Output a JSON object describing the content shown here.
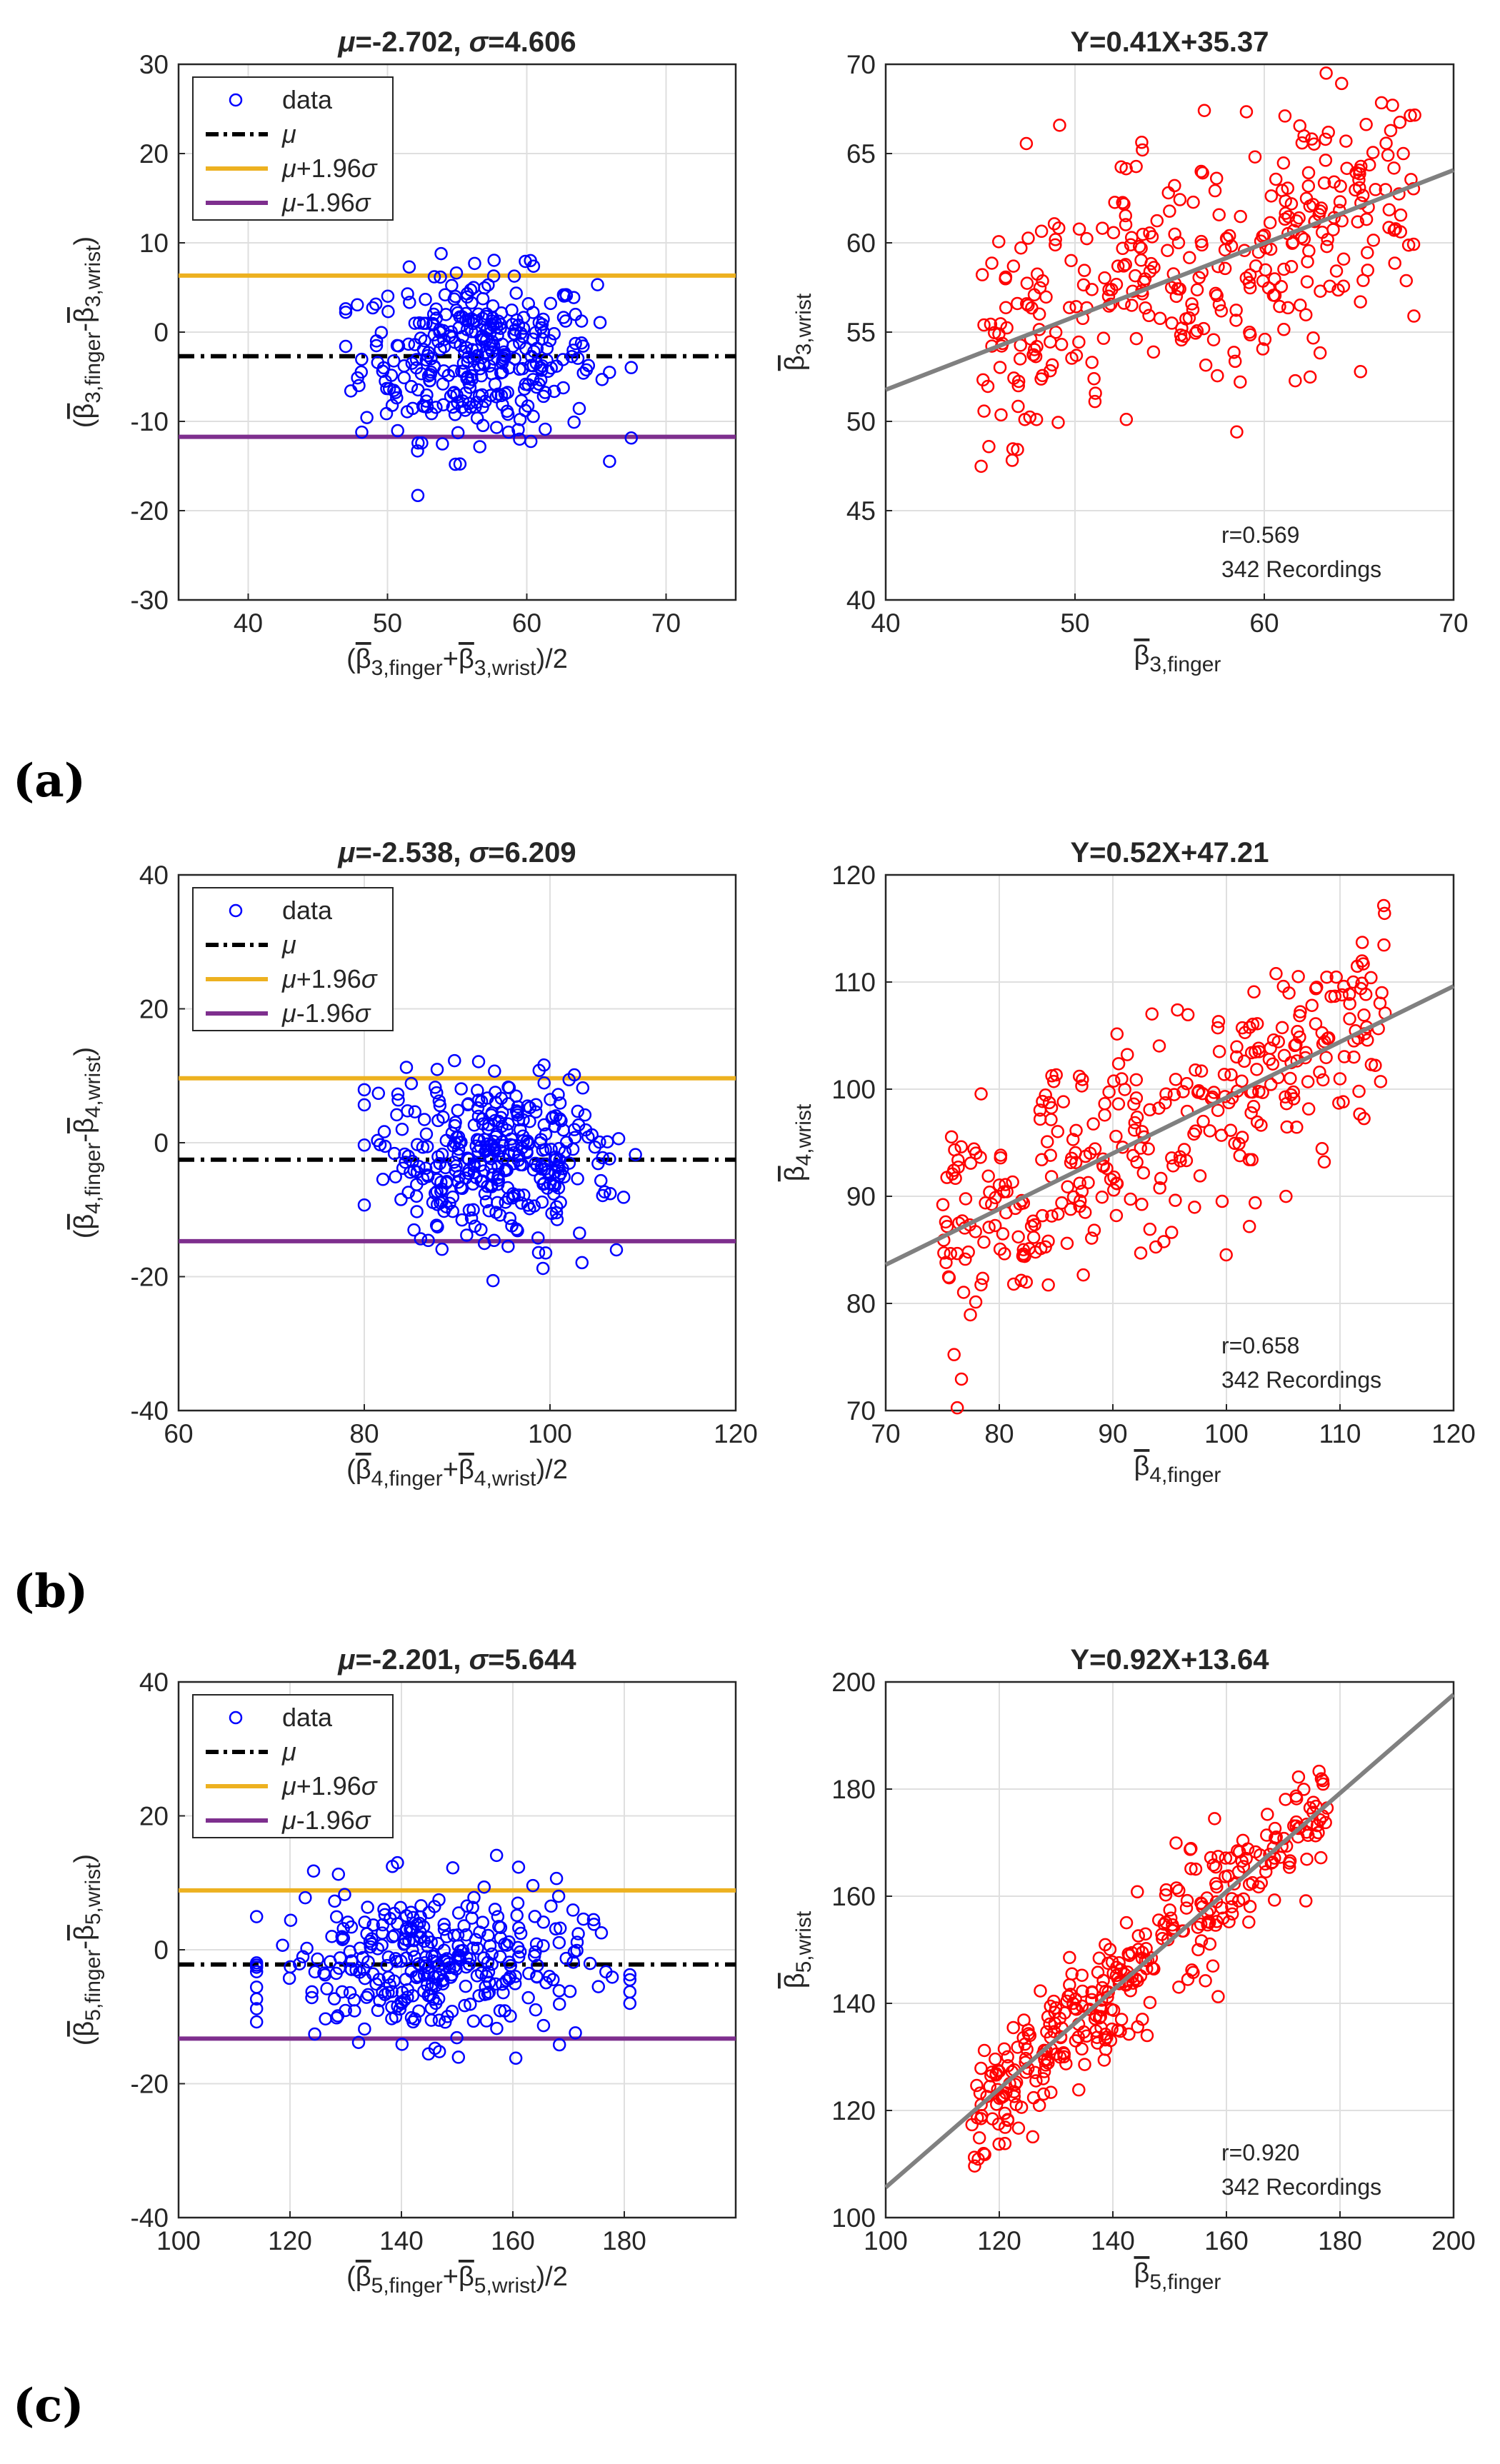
{
  "figure": {
    "rows": [
      {
        "panel_label": "(a)",
        "index": 3,
        "ba": {
          "title_mu": "-2.702",
          "title_sigma": "4.606",
          "xlim": [
            35,
            75
          ],
          "ylim": [
            -30,
            30
          ],
          "xticks": [
            40,
            50,
            60,
            70
          ],
          "yticks": [
            -30,
            -20,
            -10,
            0,
            10,
            20,
            30
          ],
          "mean": -2.702,
          "upper": 6.326,
          "lower": -11.73,
          "x_center": 56.5,
          "x_spread": 4.2,
          "y_spread": 4.6,
          "x_min": 47,
          "x_max": 67.5
        },
        "corr": {
          "title": "Y=0.41X+35.37",
          "slope": 0.41,
          "intercept": 35.37,
          "xlim": [
            40,
            70
          ],
          "ylim": [
            40,
            70
          ],
          "xticks": [
            40,
            50,
            60,
            70
          ],
          "yticks": [
            40,
            45,
            50,
            55,
            60,
            65,
            70
          ],
          "r_text": "r=0.569",
          "n_text": "342 Recordings",
          "x_min": 45,
          "x_max": 68,
          "resid_sd": 3.5
        }
      },
      {
        "panel_label": "(b)",
        "index": 4,
        "ba": {
          "title_mu": "-2.538",
          "title_sigma": "6.209",
          "xlim": [
            60,
            120
          ],
          "ylim": [
            -40,
            40
          ],
          "xticks": [
            60,
            80,
            100,
            120
          ],
          "yticks": [
            -40,
            -20,
            0,
            20,
            40
          ],
          "mean": -2.538,
          "upper": 9.632,
          "lower": -14.71,
          "x_center": 94,
          "x_spread": 6.5,
          "y_spread": 6.2,
          "x_min": 80,
          "x_max": 110
        },
        "corr": {
          "title": "Y=0.52X+47.21",
          "slope": 0.52,
          "intercept": 47.21,
          "xlim": [
            70,
            120
          ],
          "ylim": [
            70,
            120
          ],
          "xticks": [
            70,
            80,
            90,
            100,
            110,
            120
          ],
          "yticks": [
            70,
            80,
            90,
            100,
            110,
            120
          ],
          "r_text": "r=0.658",
          "n_text": "342 Recordings",
          "x_min": 75,
          "x_max": 114,
          "resid_sd": 5.0
        }
      },
      {
        "panel_label": "(c)",
        "index": 5,
        "ba": {
          "title_mu": "-2.201",
          "title_sigma": "5.644",
          "xlim": [
            100,
            200
          ],
          "ylim": [
            -40,
            40
          ],
          "xticks": [
            100,
            120,
            140,
            160,
            180
          ],
          "yticks": [
            -40,
            -20,
            0,
            20,
            40
          ],
          "mean": -2.201,
          "upper": 8.861,
          "lower": -13.26,
          "x_center": 145,
          "x_spread": 14,
          "y_spread": 5.6,
          "x_min": 114,
          "x_max": 181
        },
        "corr": {
          "title": "Y=0.92X+13.64",
          "slope": 0.92,
          "intercept": 13.64,
          "xlim": [
            100,
            200
          ],
          "ylim": [
            100,
            200
          ],
          "xticks": [
            100,
            120,
            140,
            160,
            180,
            200
          ],
          "yticks": [
            100,
            120,
            140,
            160,
            180,
            200
          ],
          "r_text": "r=0.920",
          "n_text": "342 Recordings",
          "x_min": 115,
          "x_max": 178,
          "resid_sd": 5.5
        }
      }
    ],
    "legend": {
      "data": "data",
      "mu": "μ",
      "upper": "μ+1.96σ",
      "lower": "μ-1.96σ"
    },
    "labels": {
      "finger": "finger",
      "wrist": "wrist",
      "beta": "β"
    }
  },
  "chart_data": [
    {
      "type": "scatter",
      "title": "μ=-2.702, σ=4.606",
      "xlabel": "(β̄3,finger+β̄3,wrist)/2",
      "ylabel": "(β̄3,finger-β̄3,wrist)",
      "xlim": [
        35,
        75
      ],
      "ylim": [
        -30,
        30
      ],
      "series": [
        {
          "name": "data",
          "n": 342
        }
      ],
      "reference_lines": {
        "mean": -2.702,
        "upper_1.96sd": 6.326,
        "lower_1.96sd": -11.73
      }
    },
    {
      "type": "scatter",
      "title": "Y=0.41X+35.37",
      "xlabel": "β̄3,finger",
      "ylabel": "β̄3,wrist",
      "xlim": [
        40,
        70
      ],
      "ylim": [
        40,
        70
      ],
      "fit": {
        "slope": 0.41,
        "intercept": 35.37
      },
      "annotations": [
        "r=0.569",
        "342 Recordings"
      ]
    },
    {
      "type": "scatter",
      "title": "μ=-2.538, σ=6.209",
      "xlabel": "(β̄4,finger+β̄4,wrist)/2",
      "ylabel": "(β̄4,finger-β̄4,wrist)",
      "xlim": [
        60,
        120
      ],
      "ylim": [
        -40,
        40
      ],
      "series": [
        {
          "name": "data",
          "n": 342
        }
      ],
      "reference_lines": {
        "mean": -2.538,
        "upper_1.96sd": 9.632,
        "lower_1.96sd": -14.71
      }
    },
    {
      "type": "scatter",
      "title": "Y=0.52X+47.21",
      "xlabel": "β̄4,finger",
      "ylabel": "β̄4,wrist",
      "xlim": [
        70,
        120
      ],
      "ylim": [
        70,
        120
      ],
      "fit": {
        "slope": 0.52,
        "intercept": 47.21
      },
      "annotations": [
        "r=0.658",
        "342 Recordings"
      ]
    },
    {
      "type": "scatter",
      "title": "μ=-2.201, σ=5.644",
      "xlabel": "(β̄5,finger+β̄5,wrist)/2",
      "ylabel": "(β̄5,finger-β̄5,wrist)",
      "xlim": [
        100,
        200
      ],
      "ylim": [
        -40,
        40
      ],
      "series": [
        {
          "name": "data",
          "n": 342
        }
      ],
      "reference_lines": {
        "mean": -2.201,
        "upper_1.96sd": 8.861,
        "lower_1.96sd": -13.26
      }
    },
    {
      "type": "scatter",
      "title": "Y=0.92X+13.64",
      "xlabel": "β̄5,finger",
      "ylabel": "β̄5,wrist",
      "xlim": [
        100,
        200
      ],
      "ylim": [
        100,
        200
      ],
      "fit": {
        "slope": 0.92,
        "intercept": 13.64
      },
      "annotations": [
        "r=0.920",
        "342 Recordings"
      ]
    }
  ]
}
